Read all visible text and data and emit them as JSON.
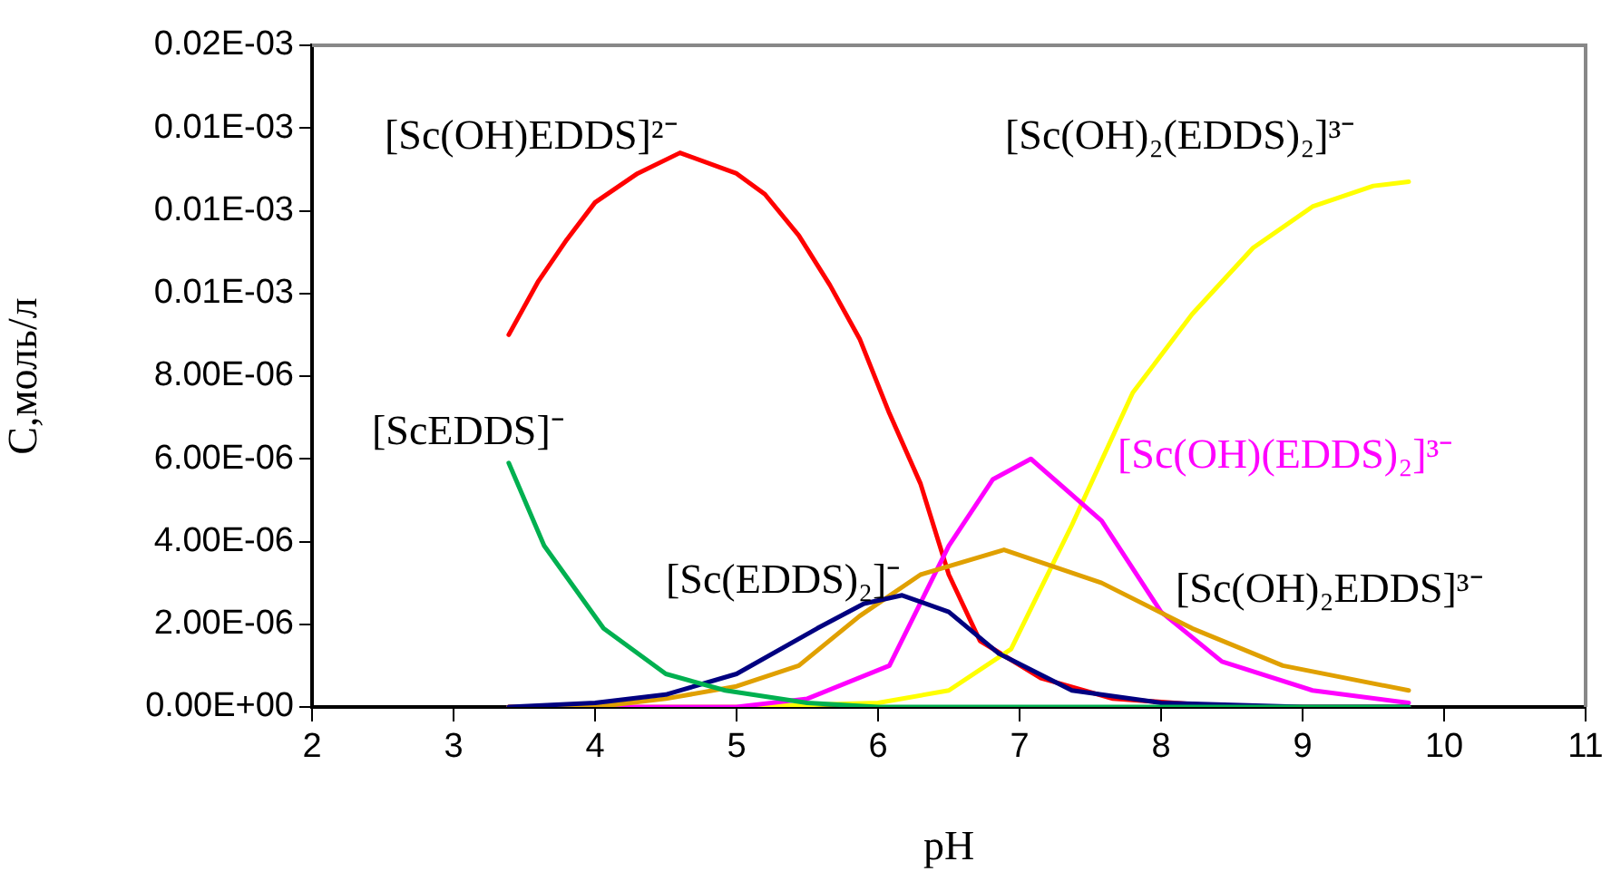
{
  "chart_data": {
    "type": "line",
    "xlabel": "pH",
    "ylabel": "C,моль/л",
    "xlim": [
      2,
      11
    ],
    "xticks": [
      2,
      3,
      4,
      5,
      6,
      7,
      8,
      9,
      10,
      11
    ],
    "ylim": [
      0,
      1.6e-05
    ],
    "yticks": [
      {
        "value": 0,
        "label": "0.00E+00"
      },
      {
        "value": 2e-06,
        "label": "2.00E-06"
      },
      {
        "value": 4e-06,
        "label": "4.00E-06"
      },
      {
        "value": 6e-06,
        "label": "6.00E-06"
      },
      {
        "value": 8e-06,
        "label": "8.00E-06"
      },
      {
        "value": 1e-05,
        "label": "0.01E-03"
      },
      {
        "value": 1.2e-05,
        "label": "0.01E-03"
      },
      {
        "value": 1.4e-05,
        "label": "0.01E-03"
      },
      {
        "value": 1.6e-05,
        "label": "0.02E-03"
      }
    ],
    "grid": false,
    "legend": false,
    "marker": "none",
    "line_style": "solid",
    "series": [
      {
        "name": "[ScEDDS]⁻",
        "color": "#00b050",
        "x": [
          3.39,
          3.64,
          4.06,
          4.5,
          4.92,
          5.5,
          6,
          7,
          8,
          9,
          9.75
        ],
        "values": [
          5.9e-06,
          3.9e-06,
          1.9e-06,
          8e-07,
          4e-07,
          1e-07,
          0,
          0,
          0,
          0,
          0
        ]
      },
      {
        "name": "[Sc(EDDS)₂]⁻",
        "color": "#000080",
        "x": [
          3.39,
          4,
          4.5,
          5,
          5.57,
          5.9,
          6.17,
          6.5,
          6.85,
          7.37,
          8,
          9,
          9.75
        ],
        "values": [
          0,
          1e-07,
          3e-07,
          8e-07,
          1.9e-06,
          2.5e-06,
          2.7e-06,
          2.3e-06,
          1.3e-06,
          4e-07,
          1e-07,
          0,
          0
        ]
      },
      {
        "name": "[Sc(OH)₂EDDS]³⁻",
        "color": "#e0a000",
        "x": [
          3.39,
          4,
          4.5,
          5,
          5.44,
          5.87,
          6.3,
          6.89,
          7.58,
          8.22,
          8.86,
          9.75
        ],
        "values": [
          0,
          0,
          2e-07,
          5e-07,
          1e-06,
          2.2e-06,
          3.2e-06,
          3.8e-06,
          3e-06,
          1.9e-06,
          1e-06,
          4e-07
        ]
      },
      {
        "name": "[Sc(OH)(EDDS)₂]³⁻",
        "color": "#ff00ff",
        "x": [
          3.39,
          5,
          5.5,
          6.08,
          6.5,
          6.81,
          7.08,
          7.58,
          8,
          8.43,
          9.07,
          9.75
        ],
        "values": [
          0,
          0,
          2e-07,
          1e-06,
          3.9e-06,
          5.5e-06,
          6e-06,
          4.5e-06,
          2.3e-06,
          1.1e-06,
          4e-07,
          1e-07
        ]
      },
      {
        "name": "[Sc(OH)₂(EDDS)₂]³⁻",
        "color": "#ffff00",
        "x": [
          3.39,
          5,
          6,
          6.5,
          6.94,
          7.37,
          7.8,
          8.22,
          8.65,
          9.07,
          9.5,
          9.75
        ],
        "values": [
          0,
          0,
          1e-07,
          4e-07,
          1.4e-06,
          4.4e-06,
          7.6e-06,
          9.5e-06,
          1.11e-05,
          1.21e-05,
          1.26e-05,
          1.27e-05
        ]
      },
      {
        "name": "[Sc(OH)EDDS]²⁻",
        "color": "#ff0000",
        "x": [
          3.39,
          3.6,
          3.8,
          4,
          4.3,
          4.6,
          5,
          5.2,
          5.44,
          5.66,
          5.87,
          6.08,
          6.3,
          6.5,
          6.72,
          7.15,
          7.66,
          8.5,
          9.75
        ],
        "values": [
          9e-06,
          1.03e-05,
          1.13e-05,
          1.22e-05,
          1.29e-05,
          1.34e-05,
          1.29e-05,
          1.24e-05,
          1.14e-05,
          1.02e-05,
          8.9e-06,
          7.1e-06,
          5.4e-06,
          3.2e-06,
          1.6e-06,
          7e-07,
          2e-07,
          0,
          0
        ]
      }
    ]
  }
}
